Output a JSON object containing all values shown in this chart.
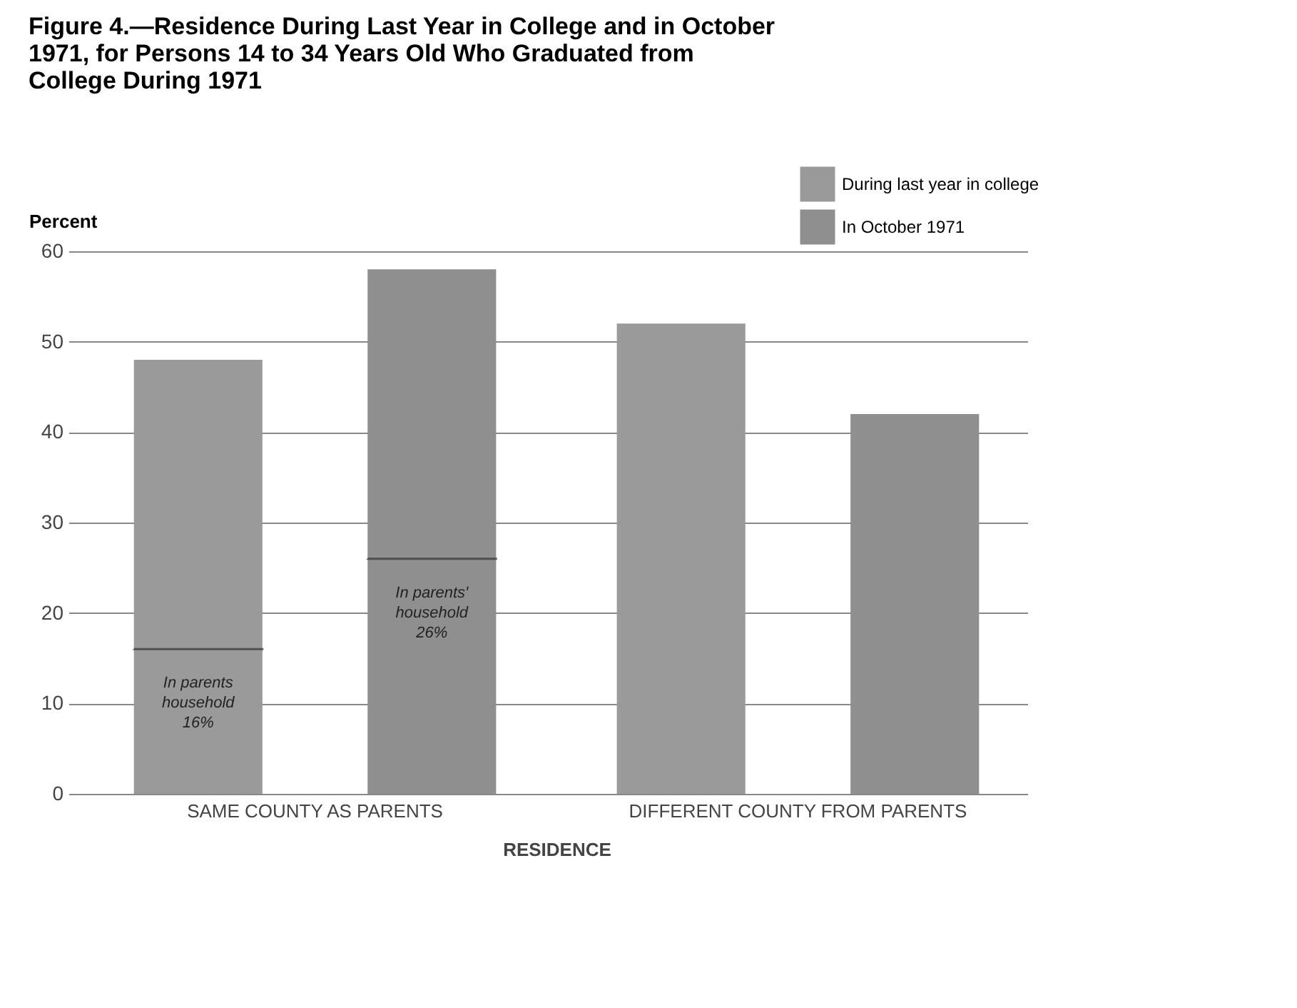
{
  "chart_data": {
    "type": "bar",
    "title": "Figure 4.—Residence During Last Year in College and in October 1971, for Persons 14 to 34 Years Old Who Graduated from College During 1971",
    "xlabel": "RESIDENCE",
    "ylabel": "Percent",
    "categories": [
      "SAME COUNTY AS PARENTS",
      "DIFFERENT COUNTY FROM PARENTS"
    ],
    "series": [
      {
        "name": "During last year in college",
        "color": "#9a9a9a",
        "values": [
          48,
          52
        ]
      },
      {
        "name": "In October 1971",
        "color": "#8f8f8f",
        "values": [
          58,
          42
        ]
      }
    ],
    "ref_lines": [
      {
        "axis": "y",
        "value": 16,
        "label": "In parents household 16%",
        "color": "#333333",
        "line_style": "dashed"
      },
      {
        "axis": "y",
        "value": 26,
        "label": "In parents' household 26%",
        "color": "#333333",
        "line_style": "dashed"
      }
    ],
    "ylim": [
      0,
      60
    ],
    "yticks": [
      0,
      10,
      20,
      30,
      40,
      50,
      60
    ],
    "grid": "y",
    "legend": "top right"
  }
}
